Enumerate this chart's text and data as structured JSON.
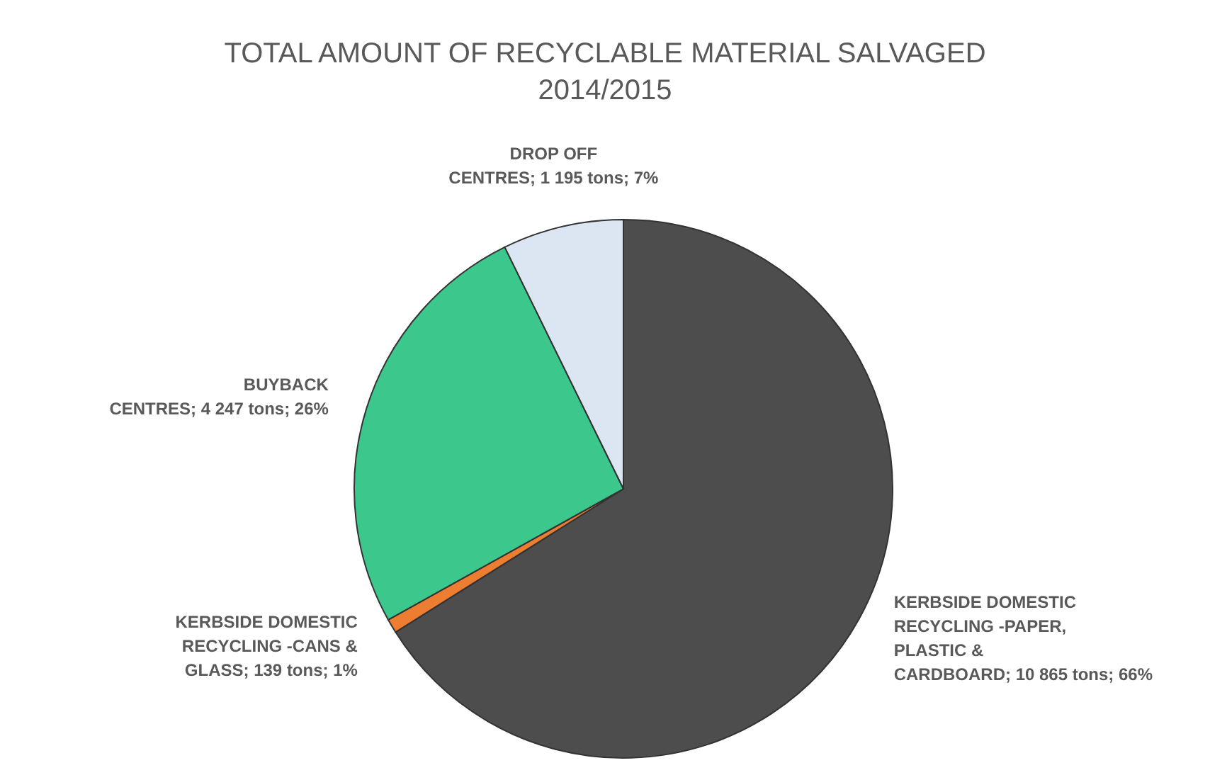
{
  "chart_data": {
    "type": "pie",
    "title": "TOTAL AMOUNT OF RECYCLABLE MATERIAL SALVAGED 2014/2015",
    "categories": [
      "KERBSIDE DOMESTIC RECYCLING -PAPER, PLASTIC & CARDBOARD",
      "KERBSIDE DOMESTIC RECYCLING -CANS & GLASS",
      "BUYBACK CENTRES",
      "DROP OFF CENTRES"
    ],
    "values": [
      10865,
      139,
      4247,
      1195
    ],
    "value_labels": [
      "10 865 tons; 66%",
      "139 tons; 1%",
      "4 247 tons; 26%",
      "1 195 tons; 7%"
    ],
    "colors": [
      "#4d4d4d",
      "#ed7d31",
      "#3cc88c",
      "#dce6f2"
    ],
    "legend": false
  }
}
